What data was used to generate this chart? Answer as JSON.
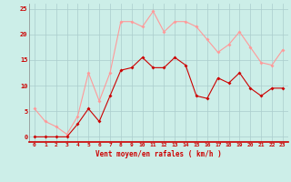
{
  "x": [
    0,
    1,
    2,
    3,
    4,
    5,
    6,
    7,
    8,
    9,
    10,
    11,
    12,
    13,
    14,
    15,
    16,
    17,
    18,
    19,
    20,
    21,
    22,
    23
  ],
  "wind_avg": [
    0,
    0,
    0,
    0,
    2.5,
    5.5,
    3.0,
    8.0,
    13.0,
    13.5,
    15.5,
    13.5,
    13.5,
    15.5,
    14.0,
    8.0,
    7.5,
    11.5,
    10.5,
    12.5,
    9.5,
    8.0,
    9.5,
    9.5
  ],
  "wind_gust": [
    5.5,
    3.0,
    2.0,
    0.5,
    4.0,
    12.5,
    7.0,
    12.5,
    22.5,
    22.5,
    21.5,
    24.5,
    20.5,
    22.5,
    22.5,
    21.5,
    19.0,
    16.5,
    18.0,
    20.5,
    17.5,
    14.5,
    14.0,
    17.0
  ],
  "avg_color": "#cc0000",
  "gust_color": "#ff9999",
  "bg_color": "#cceee8",
  "grid_color": "#aacccc",
  "xlabel": "Vent moyen/en rafales ( km/h )",
  "xlabel_color": "#cc0000",
  "tick_color": "#cc0000",
  "ylim": [
    -1,
    26
  ],
  "yticks": [
    0,
    5,
    10,
    15,
    20,
    25
  ],
  "xticks": [
    0,
    1,
    2,
    3,
    4,
    5,
    6,
    7,
    8,
    9,
    10,
    11,
    12,
    13,
    14,
    15,
    16,
    17,
    18,
    19,
    20,
    21,
    22,
    23
  ]
}
